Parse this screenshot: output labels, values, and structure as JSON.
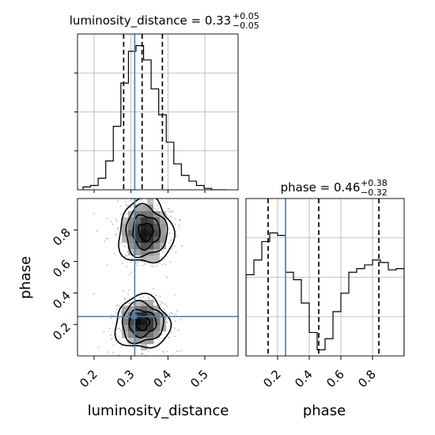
{
  "chart_data": {
    "type": "corner",
    "parameters": [
      "luminosity_distance",
      "phase"
    ],
    "truths": {
      "luminosity_distance": 0.31,
      "phase": 0.25
    },
    "panels": [
      {
        "id": "hist-luminosity-distance",
        "type": "histogram",
        "title_param": "luminosity_distance",
        "title_value": "0.33",
        "title_plus": "+0.05",
        "title_minus": "−0.05",
        "xlim": [
          0.155,
          0.59
        ],
        "xticks": [
          0.2,
          0.3,
          0.4,
          0.5
        ],
        "quantiles": [
          0.28,
          0.33,
          0.385
        ],
        "bin_edges": [
          0.17,
          0.1905,
          0.211,
          0.2315,
          0.252,
          0.2725,
          0.293,
          0.3135,
          0.334,
          0.3545,
          0.375,
          0.3955,
          0.416,
          0.4365,
          0.457,
          0.4775,
          0.498,
          0.5185,
          0.539,
          0.5595
        ],
        "counts": [
          2,
          3,
          8,
          20,
          44,
          74,
          96,
          100,
          90,
          70,
          52,
          33,
          18,
          10,
          6,
          3,
          1,
          0,
          0
        ],
        "grid": true
      },
      {
        "id": "hist-phase",
        "type": "histogram",
        "title_param": "phase",
        "title_value": "0.46",
        "title_plus": "+0.38",
        "title_minus": "−0.32",
        "xlim": [
          0.0,
          1.0
        ],
        "xticks": [
          0.2,
          0.4,
          0.6,
          0.8
        ],
        "quantiles": [
          0.14,
          0.46,
          0.84
        ],
        "bin_edges": [
          0.0,
          0.05,
          0.1,
          0.15,
          0.2,
          0.25,
          0.3,
          0.35,
          0.4,
          0.45,
          0.5,
          0.55,
          0.6,
          0.65,
          0.7,
          0.75,
          0.8,
          0.85,
          0.9,
          0.95,
          1.0
        ],
        "counts": [
          66,
          78,
          93,
          100,
          98,
          68,
          62,
          43,
          19,
          5,
          14,
          36,
          51,
          68,
          71,
          74,
          78,
          76,
          70,
          71
        ],
        "ylim": [
          0,
          128
        ],
        "grid": true
      },
      {
        "id": "joint-ld-phase",
        "type": "2d-density",
        "xparam": "luminosity_distance",
        "yparam": "phase",
        "xlim": [
          0.155,
          0.59
        ],
        "ylim": [
          0.0,
          1.0
        ],
        "xticks": [
          0.2,
          0.3,
          0.4,
          0.5
        ],
        "yticks": [
          0.2,
          0.4,
          0.6,
          0.8
        ],
        "modes": [
          {
            "x": 0.33,
            "y": 0.21,
            "sx": 0.035,
            "sy": 0.08
          },
          {
            "x": 0.34,
            "y": 0.79,
            "sx": 0.035,
            "sy": 0.1
          }
        ],
        "contour_levels": 4
      }
    ],
    "xlabels": [
      "luminosity_distance",
      "phase"
    ],
    "ylabels": [
      "phase"
    ],
    "colors": {
      "line": "#000000",
      "truth": "#4682b4",
      "grid": "#b0b0b0",
      "hist_fill": "#ffffff"
    }
  }
}
